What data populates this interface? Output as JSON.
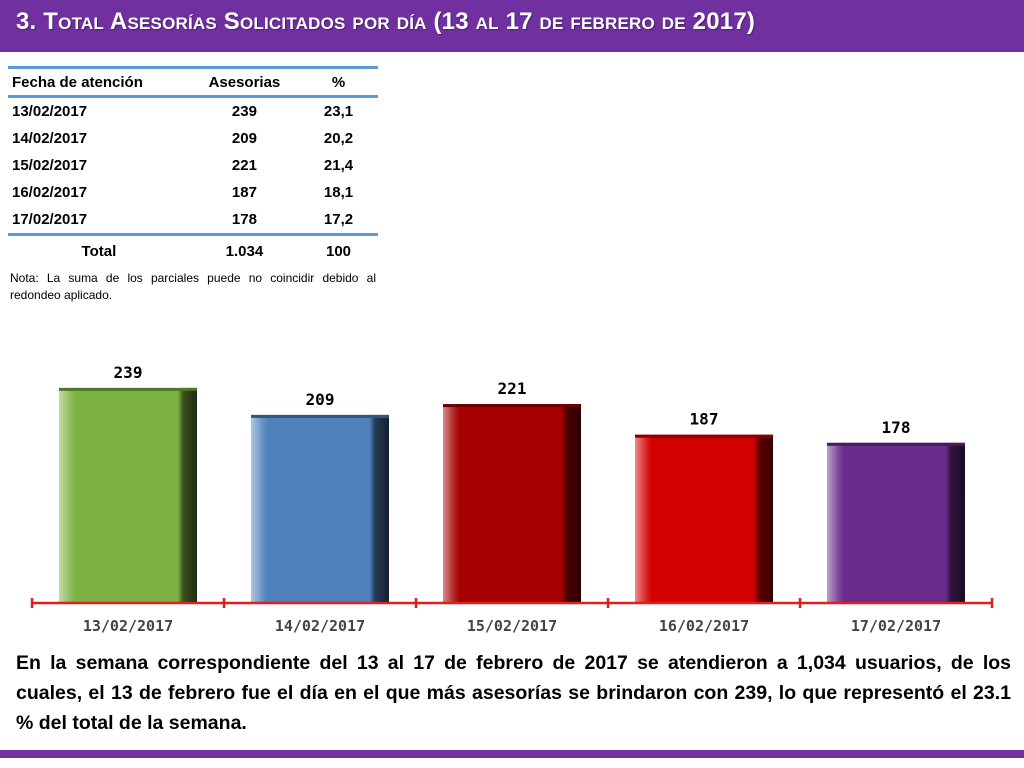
{
  "header": {
    "title": "3.  Total Asesorías Solicitados por día  (13 al 17 de febrero de 2017)"
  },
  "table": {
    "headers": [
      "Fecha de atención",
      "Asesorias",
      "%"
    ],
    "rows": [
      [
        "13/02/2017",
        "239",
        "23,1"
      ],
      [
        "14/02/2017",
        "209",
        "20,2"
      ],
      [
        "15/02/2017",
        "221",
        "21,4"
      ],
      [
        "16/02/2017",
        "187",
        "18,1"
      ],
      [
        "17/02/2017",
        "178",
        "17,2"
      ]
    ],
    "total": [
      "Total",
      "1.034",
      "100"
    ]
  },
  "note": "Nota: La suma de los parciales puede no coincidir debido al redondeo aplicado.",
  "chart_data": {
    "type": "bar",
    "title": "",
    "xlabel": "",
    "ylabel": "",
    "categories": [
      "13/02/2017",
      "14/02/2017",
      "15/02/2017",
      "16/02/2017",
      "17/02/2017"
    ],
    "values": [
      239,
      209,
      221,
      187,
      178
    ],
    "ylim": [
      0,
      250
    ],
    "grid": false,
    "legend": "none",
    "colors": [
      "#7cb342",
      "#4f81bd",
      "#a50000",
      "#d40000",
      "#6a2c8c"
    ],
    "axis_color": "#e02020"
  },
  "summary": "En la semana correspondiente del 13 al 17 de febrero de 2017 se atendieron a 1,034 usuarios, de los cuales, el 13 de febrero fue el día en el que más asesorías se brindaron con 239, lo que representó el 23.1 % del total de la semana.",
  "colors": {
    "brand": "#7030a0",
    "table_rule": "#5b9bd5"
  }
}
